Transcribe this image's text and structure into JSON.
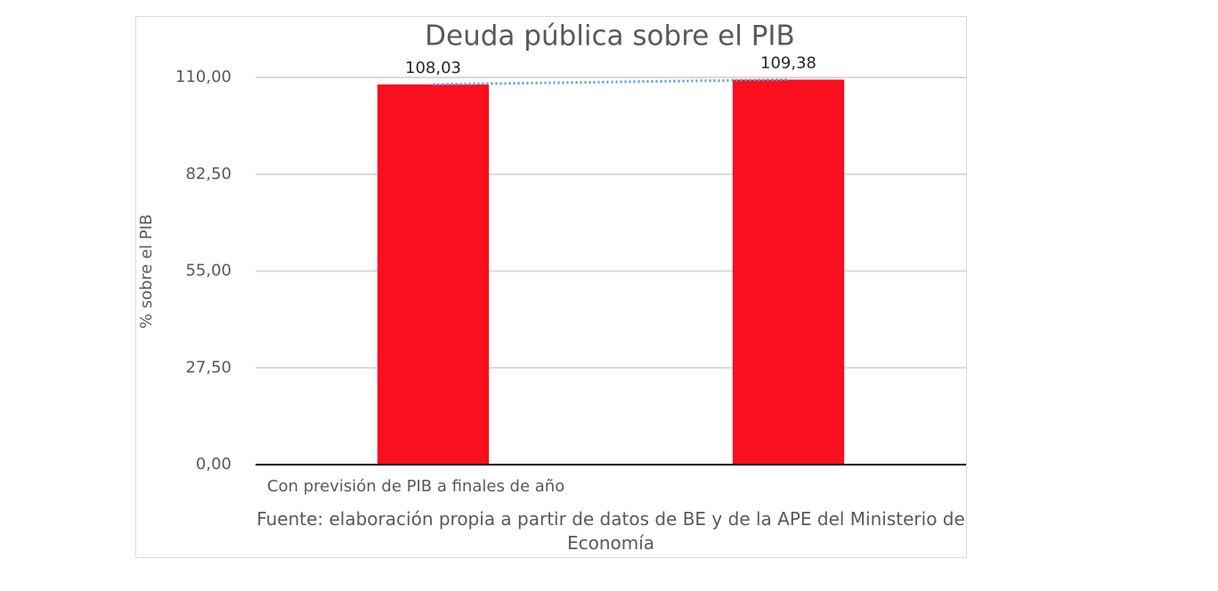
{
  "chart_data": {
    "type": "bar",
    "title": "Deuda pública sobre el PIB",
    "y_label": "% sobre el PIB",
    "x_label": "Con previsión de PIB a finales de año",
    "source": "Fuente: elaboración propia a partir de datos de BE y de la APE del Ministerio de Economía",
    "categories": [
      null,
      null
    ],
    "values": [
      108.03,
      109.38
    ],
    "value_labels": [
      "108,03",
      "109,38"
    ],
    "color": "#fa0f1e",
    "trendline": true,
    "trendline_color": "#5b9bd5",
    "ylim": [
      0,
      110
    ],
    "yticks": [
      {
        "value": 0,
        "label": "0,00"
      },
      {
        "value": 27.5,
        "label": "27,50"
      },
      {
        "value": 55,
        "label": "55,00"
      },
      {
        "value": 82.5,
        "label": "82,50"
      },
      {
        "value": 110,
        "label": "110,00"
      }
    ],
    "grid": true
  }
}
